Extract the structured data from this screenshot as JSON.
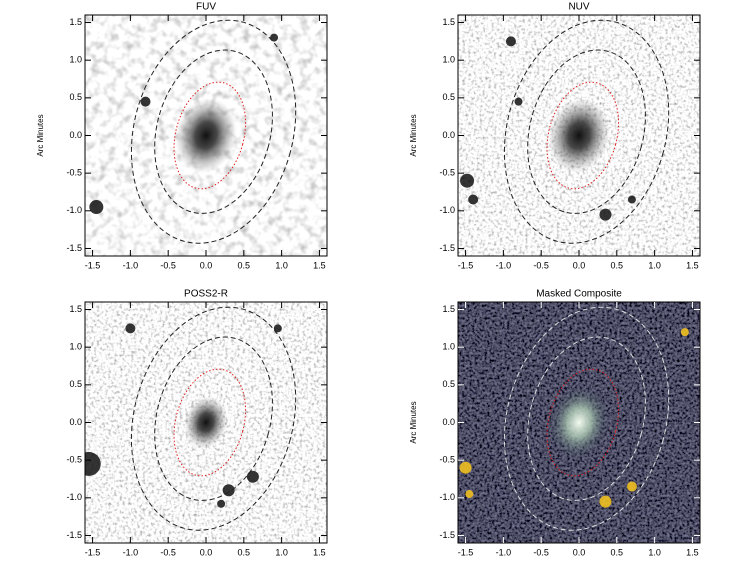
{
  "chart_data": [
    {
      "type": "image",
      "title": "FUV",
      "ylabel": "Arc Minutes",
      "colormap": "gray_r",
      "xlim": [
        -1.6,
        1.6
      ],
      "ylim": [
        -1.6,
        1.6
      ],
      "xticks": [
        -1.5,
        {
          "value": -1,
          "label": "-1.0"
        },
        -0.5,
        {
          "value": 0,
          "label": "0.0"
        },
        0.5,
        {
          "value": 1,
          "label": "1.0"
        },
        1.5
      ],
      "yticks": [
        -1.5,
        {
          "value": -1,
          "label": "-1.0"
        },
        -0.5,
        {
          "value": 0,
          "label": "0.0"
        },
        0.5,
        {
          "value": 1,
          "label": "1.0"
        },
        1.5
      ]
    },
    {
      "type": "image",
      "title": "NUV",
      "ylabel": "Arc Minutes",
      "colormap": "gray_r",
      "xlim": [
        -1.6,
        1.6
      ],
      "ylim": [
        -1.6,
        1.6
      ],
      "xticks": [
        -1.5,
        {
          "value": -1,
          "label": "-1.0"
        },
        -0.5,
        {
          "value": 0,
          "label": "0.0"
        },
        0.5,
        {
          "value": 1,
          "label": "1.0"
        },
        1.5
      ],
      "yticks": [
        -1.5,
        {
          "value": -1,
          "label": "-1.0"
        },
        -0.5,
        {
          "value": 0,
          "label": "0.0"
        },
        0.5,
        {
          "value": 1,
          "label": "1.0"
        },
        1.5
      ]
    },
    {
      "type": "image",
      "title": "POSS2-R",
      "colormap": "gray_r",
      "xlim": [
        -1.6,
        1.6
      ],
      "ylim": [
        -1.6,
        1.6
      ],
      "xticks": [
        -1.5,
        {
          "value": -1,
          "label": "-1.0"
        },
        -0.5,
        {
          "value": 0,
          "label": "0.0"
        },
        0.5,
        {
          "value": 1,
          "label": "1.0"
        },
        1.5
      ],
      "yticks": [
        -1.5,
        {
          "value": -1,
          "label": "-1.0"
        },
        -0.5,
        {
          "value": 0,
          "label": "0.0"
        },
        0.5,
        {
          "value": 1,
          "label": "1.0"
        },
        1.5
      ]
    },
    {
      "type": "image",
      "title": "Masked Composite",
      "ylabel": "Arc Minutes",
      "colormap": "rgb",
      "xlim": [
        -1.6,
        1.6
      ],
      "ylim": [
        -1.6,
        1.6
      ],
      "xticks": [
        -1.5,
        {
          "value": -1,
          "label": "-1.0"
        },
        -0.5,
        {
          "value": 0,
          "label": "0.0"
        },
        0.5,
        {
          "value": 1,
          "label": "1.0"
        },
        1.5
      ],
      "yticks": [
        -1.5,
        {
          "value": -1,
          "label": "-1.0"
        },
        -0.5,
        {
          "value": 0,
          "label": "0.0"
        },
        0.5,
        {
          "value": 1,
          "label": "1.0"
        },
        1.5
      ]
    }
  ]
}
